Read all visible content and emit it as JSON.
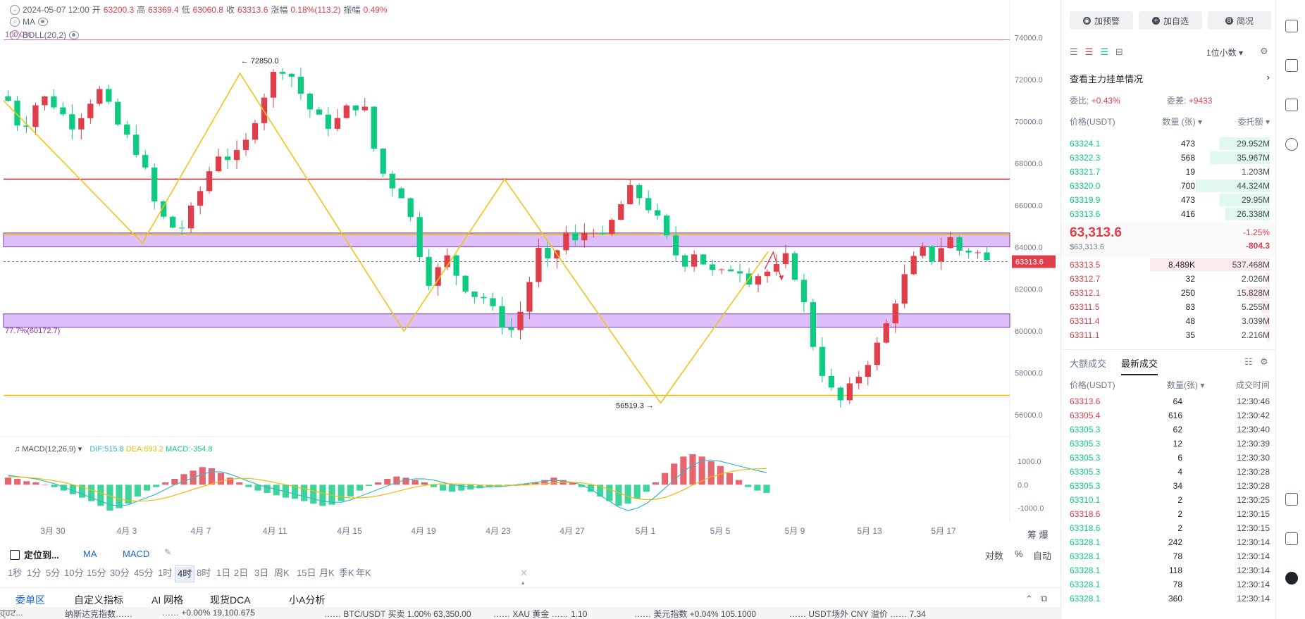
{
  "info": {
    "date": "2024-05-07 12:00",
    "open_label": "开",
    "open": "63200.3",
    "high_label": "高",
    "high": "63369.4",
    "low_label": "低",
    "low": "63060.8",
    "close_label": "收",
    "close": "63313.6",
    "change_label": "涨幅",
    "change": "0.18%(113.2)",
    "amp_label": "振幅",
    "amp": "0.49%",
    "ma_label": "MA",
    "boll_label": "BOLL(20,2)"
  },
  "chart_data": {
    "type": "candlestick",
    "price_axis_ticks": [
      "74000.0",
      "72000.0",
      "70000.0",
      "68000.0",
      "66000.0",
      "64000.0",
      "62000.0",
      "60000.0",
      "58000.0",
      "56000.0"
    ],
    "price_axis_values": [
      74000,
      72000,
      70000,
      68000,
      66000,
      64000,
      62000,
      60000,
      58000,
      56000
    ],
    "ylim": [
      55300,
      75800
    ],
    "current_price_label": "63313.6",
    "current_price": 63313.6,
    "date_labels": [
      "3月 30",
      "4月 3",
      "4月 7",
      "4月 11",
      "4月 15",
      "4月 19",
      "4月 23",
      "4月 27",
      "5月 1",
      "5月 5",
      "5月 9",
      "5月 13",
      "5月 17"
    ],
    "high_marker_label": "72850.0",
    "high_marker": 72850.0,
    "low_marker_label": "56519.3",
    "low_marker": 56519.3,
    "fib_top_label": "100.0%",
    "fib_top": 73900,
    "fib_77_label": "77.7%(60172.7)",
    "fib_77": 60172.7,
    "red_line": 67250,
    "yellow_lines": [
      64620,
      56930
    ],
    "purple_zones": [
      [
        64020,
        64680
      ],
      [
        60180,
        60820
      ]
    ],
    "zigzag": [
      [
        0.0,
        71000
      ],
      [
        0.138,
        64200
      ],
      [
        0.235,
        72300
      ],
      [
        0.398,
        60000
      ],
      [
        0.498,
        67250
      ],
      [
        0.653,
        56560
      ],
      [
        0.76,
        63800
      ]
    ],
    "close_path": [
      71000,
      69500,
      70800,
      71200,
      70400,
      69800,
      70900,
      71500,
      70100,
      69200,
      68400,
      66200,
      65100,
      64800,
      65900,
      67400,
      68600,
      68100,
      69000,
      70800,
      72200,
      72700,
      71500,
      70400,
      69800,
      70100,
      70900,
      70500,
      67800,
      67000,
      66400,
      64000,
      62100,
      63700,
      62600,
      61800,
      61600,
      60600,
      60000,
      61300,
      63900,
      63000,
      64800,
      64100,
      65200,
      64300,
      65700,
      66700,
      66300,
      65400,
      64100,
      63200,
      63900,
      62800,
      62700,
      63200,
      62500,
      62800,
      62900,
      63600,
      61700,
      59000,
      57300,
      56600,
      57600,
      58600,
      59600,
      61400,
      62900,
      63900,
      63400,
      64600,
      63800,
      63900,
      63300
    ],
    "macd": {
      "label": "MACD(12,26,9)",
      "dif_label": "DIF:515.8",
      "dea_label": "DEA:693.2",
      "macd_label": "MACD:-354.8",
      "ticks": [
        "1000.0",
        "0.0",
        "-1000.0"
      ],
      "tick_values": [
        1000,
        0,
        -1000
      ],
      "ylim": [
        -1700,
        1450
      ],
      "hist": [
        300,
        250,
        150,
        100,
        0,
        -100,
        -250,
        -400,
        -550,
        -700,
        -900,
        -1100,
        -1000,
        -800,
        -500,
        -250,
        -100,
        100,
        250,
        450,
        600,
        750,
        700,
        500,
        300,
        100,
        -100,
        -250,
        -350,
        -450,
        -550,
        -600,
        -700,
        -800,
        -900,
        -850,
        -700,
        -500,
        -250,
        -50,
        100,
        250,
        350,
        300,
        200,
        100,
        -100,
        -250,
        -300,
        -250,
        -200,
        -150,
        -100,
        -100,
        -50,
        0,
        50,
        100,
        200,
        300,
        200,
        100,
        -100,
        -300,
        -500,
        -700,
        -900,
        -800,
        -600,
        -300,
        100,
        500,
        900,
        1200,
        1300,
        1200,
        1000,
        800,
        500,
        200,
        -100,
        -250,
        -355
      ],
      "dif": [
        400,
        350,
        300,
        250,
        150,
        50,
        -100,
        -250,
        -400,
        -550,
        -700,
        -850,
        -900,
        -850,
        -700,
        -550,
        -400,
        -200,
        0,
        150,
        300,
        450,
        550,
        550,
        450,
        300,
        150,
        0,
        -100,
        -200,
        -300,
        -400,
        -500,
        -600,
        -700,
        -750,
        -750,
        -650,
        -500,
        -350,
        -200,
        -50,
        100,
        200,
        250,
        250,
        200,
        100,
        0,
        -50,
        -100,
        -100,
        -100,
        -80,
        -50,
        0,
        50,
        100,
        150,
        200,
        150,
        100,
        0,
        -200,
        -450,
        -700,
        -950,
        -1100,
        -1000,
        -800,
        -500,
        -150,
        200,
        550,
        850,
        1000,
        1050,
        1000,
        900,
        800,
        700,
        600,
        516
      ],
      "dea": [
        350,
        330,
        310,
        280,
        230,
        170,
        100,
        0,
        -100,
        -220,
        -350,
        -480,
        -600,
        -680,
        -700,
        -690,
        -640,
        -560,
        -450,
        -330,
        -200,
        -80,
        40,
        150,
        230,
        270,
        270,
        230,
        160,
        80,
        0,
        -80,
        -170,
        -260,
        -360,
        -450,
        -520,
        -560,
        -560,
        -530,
        -470,
        -390,
        -290,
        -190,
        -100,
        -30,
        20,
        40,
        40,
        30,
        10,
        -10,
        -30,
        -40,
        -40,
        -30,
        -10,
        20,
        50,
        80,
        100,
        100,
        80,
        20,
        -70,
        -190,
        -340,
        -500,
        -600,
        -640,
        -620,
        -540,
        -400,
        -220,
        -20,
        170,
        330,
        450,
        550,
        620,
        660,
        680,
        693
      ]
    }
  },
  "left_toolbar": {
    "locate": "定位到...",
    "ma": "MA",
    "macd": "MACD",
    "scale_log": "对数",
    "scale_pct": "%",
    "scale_auto": "自动",
    "right_icons": "筹 爆"
  },
  "timeframes": [
    "1秒",
    "1分",
    "5分",
    "10分",
    "15分",
    "30分",
    "45分",
    "1时",
    "4时",
    "8时",
    "1日",
    "2日",
    "3日",
    "周K",
    "15日",
    "月K",
    "季K",
    "年K"
  ],
  "active_timeframe": "4时",
  "bottom_tabs": [
    "委单区",
    "自定义指标",
    "AI 网格",
    "现货DCA",
    "小A分析"
  ],
  "ticker_items": [
    "ਹ੍ਹਟ...",
    "纳斯达克指数……",
    "…… +0.00%  19,100.675",
    "……  BTC/USDT 买卖 1.00%  63,350.00",
    "……  XAU 黄金 ……  1.10",
    "……  美元指数 +0.04%  105.1000",
    "……  USDT场外 CNY  溢价 ……  7.34"
  ],
  "right_panel": {
    "btn_alert": "加预警",
    "btn_fav": "加自选",
    "btn_summary": "简况",
    "decimals": "1位小数",
    "main_orders": "查看主力挂单情况",
    "ratio_label": "委比:",
    "ratio_value": "+0.43%",
    "diff_label": "委差:",
    "diff_value": "+9433",
    "col_price": "价格(USDT)",
    "col_qty": "数量 (张)",
    "col_total": "委托额",
    "asks": [
      {
        "p": "63324.1",
        "q": "473",
        "t": "29.952M",
        "w": 0.42
      },
      {
        "p": "63322.3",
        "q": "568",
        "t": "35.967M",
        "w": 0.5
      },
      {
        "p": "63321.7",
        "q": "19",
        "t": "1.203M",
        "w": 0.02
      },
      {
        "p": "63320.0",
        "q": "700",
        "t": "44.324M",
        "w": 0.62
      },
      {
        "p": "63319.9",
        "q": "473",
        "t": "29.95M",
        "w": 0.42
      },
      {
        "p": "63313.6",
        "q": "416",
        "t": "26.338M",
        "w": 0.37
      }
    ],
    "last_price": "63,313.6",
    "last_price_usd": "$63,313.6",
    "last_pct": "-1.25%",
    "last_change": "-804.3",
    "bids": [
      {
        "p": "63313.5",
        "q": "8.489K",
        "t": "537.468M",
        "w": 1.0
      },
      {
        "p": "63312.7",
        "q": "32",
        "t": "2.026M",
        "w": 0.03
      },
      {
        "p": "63312.1",
        "q": "250",
        "t": "15.828M",
        "w": 0.2
      },
      {
        "p": "63311.5",
        "q": "83",
        "t": "5.255M",
        "w": 0.07
      },
      {
        "p": "63311.4",
        "q": "48",
        "t": "3.039M",
        "w": 0.05
      },
      {
        "p": "63311.1",
        "q": "35",
        "t": "2.216M",
        "w": 0.03
      }
    ],
    "trades_tab1": "大额成交",
    "trades_tab2": "最新成交",
    "tr_col_price": "价格(USDT)",
    "tr_col_qty": "数量(张)",
    "tr_col_time": "成交时间",
    "trades": [
      {
        "p": "63313.6",
        "q": "64",
        "t": "12:30:46",
        "s": "sell"
      },
      {
        "p": "63305.4",
        "q": "616",
        "t": "12:30:42",
        "s": "sell"
      },
      {
        "p": "63305.3",
        "q": "62",
        "t": "12:30:40",
        "s": "buy"
      },
      {
        "p": "63305.3",
        "q": "12",
        "t": "12:30:39",
        "s": "buy"
      },
      {
        "p": "63305.3",
        "q": "6",
        "t": "12:30:30",
        "s": "buy"
      },
      {
        "p": "63305.3",
        "q": "4",
        "t": "12:30:28",
        "s": "buy"
      },
      {
        "p": "63305.3",
        "q": "34",
        "t": "12:30:28",
        "s": "buy"
      },
      {
        "p": "63310.1",
        "q": "2",
        "t": "12:30:25",
        "s": "buy"
      },
      {
        "p": "63318.6",
        "q": "2",
        "t": "12:30:15",
        "s": "sell"
      },
      {
        "p": "63318.6",
        "q": "2",
        "t": "12:30:15",
        "s": "buy"
      },
      {
        "p": "63328.1",
        "q": "242",
        "t": "12:30:14",
        "s": "buy"
      },
      {
        "p": "63328.1",
        "q": "78",
        "t": "12:30:14",
        "s": "buy"
      },
      {
        "p": "63328.1",
        "q": "118",
        "t": "12:30:14",
        "s": "buy"
      },
      {
        "p": "63328.1",
        "q": "78",
        "t": "12:30:14",
        "s": "buy"
      },
      {
        "p": "63328.1",
        "q": "360",
        "t": "12:30:14",
        "s": "buy"
      }
    ]
  },
  "colors": {
    "up": "#e03e4a",
    "down": "#0ecb81",
    "zigzag": "#f0c419",
    "zone": "#d8b4f8",
    "red_line": "#d9243a"
  }
}
